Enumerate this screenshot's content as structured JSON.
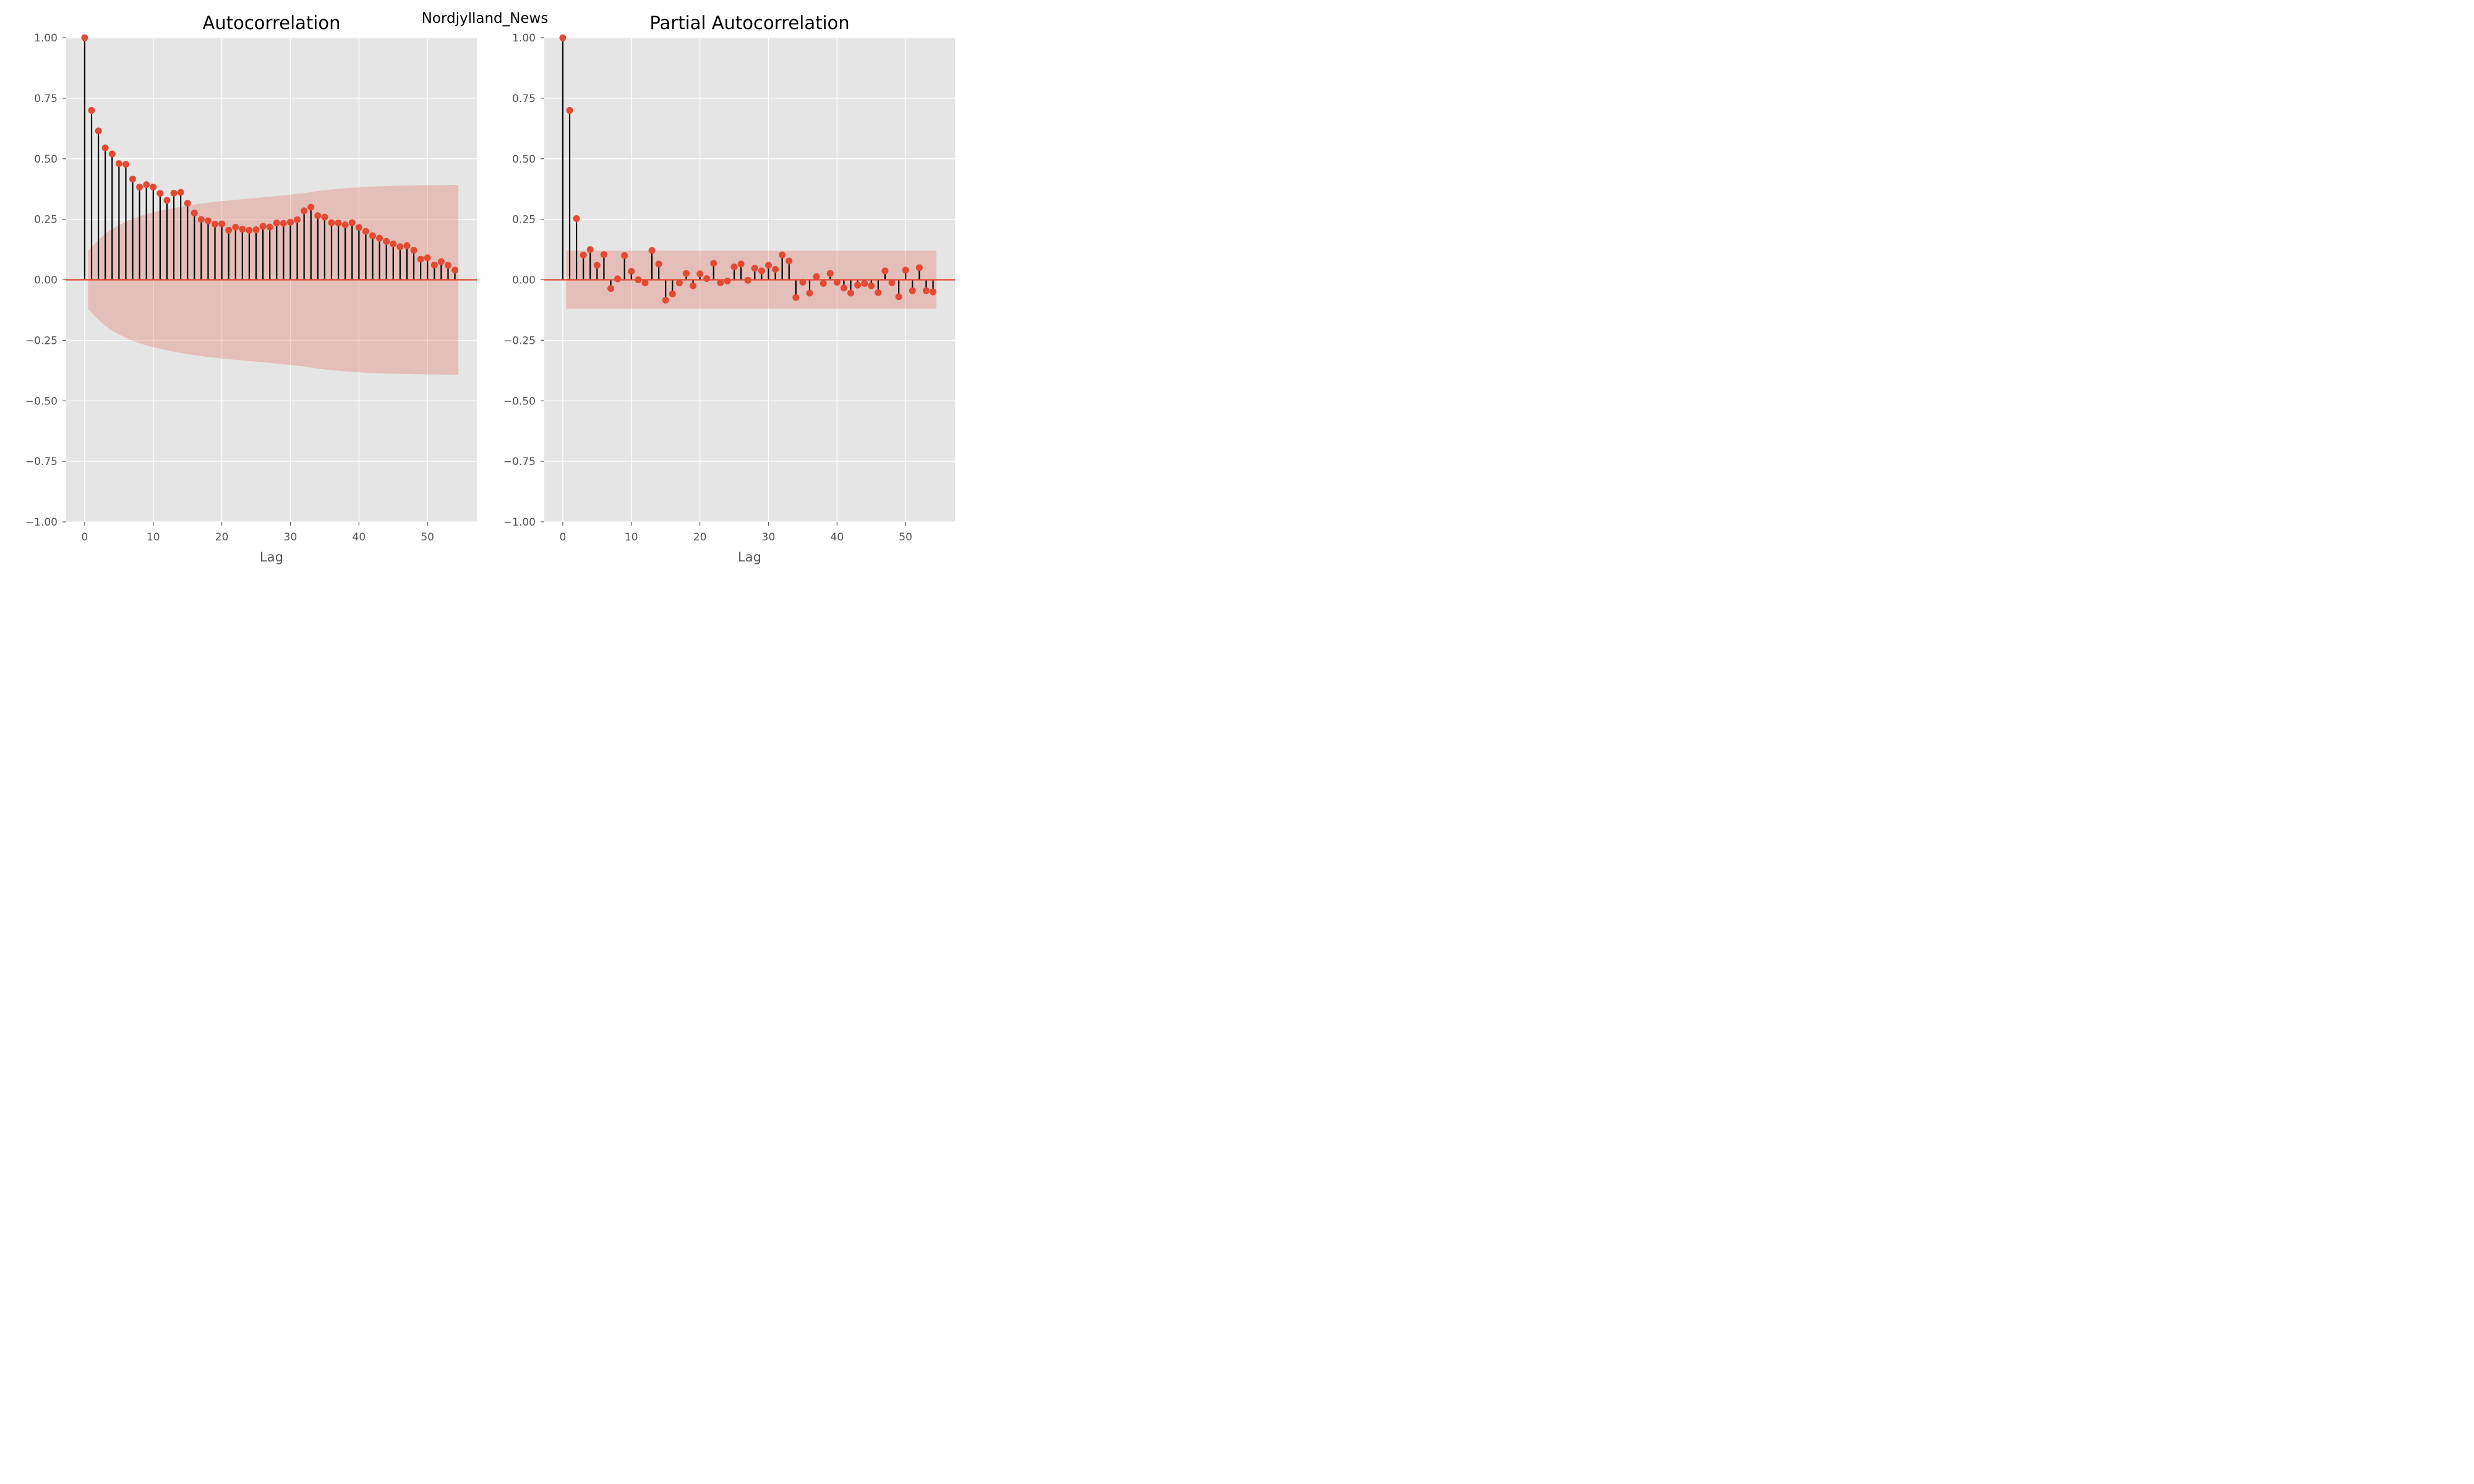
{
  "figure": {
    "suptitle": "Nordjylland_News"
  },
  "colors": {
    "panel_bg": "#e5e5e5",
    "grid": "#ffffff",
    "marker": "#e24a33",
    "stem": "#000000",
    "baseline": "#e24a33",
    "confidence_band": "#e24a33"
  },
  "chart_data": [
    {
      "type": "stem",
      "title": "Autocorrelation",
      "xlabel": "Lag",
      "ylabel": "",
      "xlim": [
        -2.7,
        57.2
      ],
      "ylim": [
        -1.0,
        1.0
      ],
      "grid": true,
      "xticks": [
        0,
        10,
        20,
        30,
        40,
        50
      ],
      "xtick_labels": [
        "0",
        "10",
        "20",
        "30",
        "40",
        "50"
      ],
      "yticks": [
        1.0,
        0.75,
        0.5,
        0.25,
        0.0,
        -0.25,
        -0.5,
        -0.75,
        -1.0
      ],
      "ytick_labels": [
        "1.00",
        "0.75",
        "0.50",
        "0.25",
        "0.00",
        "−0.25",
        "−0.50",
        "−0.75",
        "−1.00"
      ],
      "lags": [
        0,
        1,
        2,
        3,
        4,
        5,
        6,
        7,
        8,
        9,
        10,
        11,
        12,
        13,
        14,
        15,
        16,
        17,
        18,
        19,
        20,
        21,
        22,
        23,
        24,
        25,
        26,
        27,
        28,
        29,
        30,
        31,
        32,
        33,
        34,
        35,
        36,
        37,
        38,
        39,
        40,
        41,
        42,
        43,
        44,
        45,
        46,
        47,
        48,
        49,
        50,
        51,
        52,
        53,
        54
      ],
      "values": [
        1.0,
        0.7,
        0.615,
        0.545,
        0.52,
        0.48,
        0.477,
        0.416,
        0.383,
        0.393,
        0.383,
        0.357,
        0.328,
        0.358,
        0.361,
        0.316,
        0.276,
        0.249,
        0.244,
        0.23,
        0.231,
        0.205,
        0.217,
        0.209,
        0.205,
        0.207,
        0.221,
        0.218,
        0.235,
        0.233,
        0.238,
        0.248,
        0.285,
        0.3,
        0.265,
        0.259,
        0.236,
        0.235,
        0.227,
        0.236,
        0.216,
        0.2,
        0.182,
        0.172,
        0.159,
        0.148,
        0.137,
        0.141,
        0.122,
        0.085,
        0.091,
        0.061,
        0.075,
        0.06,
        0.04
      ],
      "confidence_band": {
        "lags": [
          0.5,
          1,
          2,
          3,
          4,
          5,
          6,
          7,
          8,
          9,
          10,
          11,
          12,
          13,
          14,
          15,
          16,
          17,
          18,
          19,
          20,
          21,
          22,
          23,
          24,
          25,
          26,
          27,
          28,
          29,
          30,
          31,
          32,
          33,
          34,
          35,
          36,
          37,
          38,
          39,
          40,
          41,
          42,
          43,
          44,
          45,
          46,
          47,
          48,
          49,
          50,
          51,
          52,
          53,
          54.5
        ],
        "upper": [
          0.12,
          0.135,
          0.165,
          0.19,
          0.21,
          0.225,
          0.24,
          0.252,
          0.262,
          0.271,
          0.278,
          0.285,
          0.291,
          0.297,
          0.302,
          0.307,
          0.311,
          0.315,
          0.319,
          0.322,
          0.325,
          0.328,
          0.33,
          0.333,
          0.336,
          0.338,
          0.341,
          0.343,
          0.346,
          0.349,
          0.352,
          0.355,
          0.358,
          0.363,
          0.367,
          0.37,
          0.373,
          0.376,
          0.378,
          0.38,
          0.382,
          0.384,
          0.385,
          0.386,
          0.387,
          0.388,
          0.389,
          0.389,
          0.39,
          0.39,
          0.391,
          0.391,
          0.391,
          0.392,
          0.392
        ]
      }
    },
    {
      "type": "stem",
      "title": "Partial Autocorrelation",
      "xlabel": "Lag",
      "ylabel": "",
      "xlim": [
        -2.7,
        57.2
      ],
      "ylim": [
        -1.0,
        1.0
      ],
      "grid": true,
      "xticks": [
        0,
        10,
        20,
        30,
        40,
        50
      ],
      "xtick_labels": [
        "0",
        "10",
        "20",
        "30",
        "40",
        "50"
      ],
      "yticks": [
        1.0,
        0.75,
        0.5,
        0.25,
        0.0,
        -0.25,
        -0.5,
        -0.75,
        -1.0
      ],
      "ytick_labels": [
        "1.00",
        "0.75",
        "0.50",
        "0.25",
        "0.00",
        "−0.25",
        "−0.50",
        "−0.75",
        "−1.00"
      ],
      "lags": [
        0,
        1,
        2,
        3,
        4,
        5,
        6,
        7,
        8,
        9,
        10,
        11,
        12,
        13,
        14,
        15,
        16,
        17,
        18,
        19,
        20,
        21,
        22,
        23,
        24,
        25,
        26,
        27,
        28,
        29,
        30,
        31,
        32,
        33,
        34,
        35,
        36,
        37,
        38,
        39,
        40,
        41,
        42,
        43,
        44,
        45,
        46,
        47,
        48,
        49,
        50,
        51,
        52,
        53,
        54
      ],
      "values": [
        1.0,
        0.7,
        0.253,
        0.102,
        0.125,
        0.06,
        0.104,
        -0.036,
        0.004,
        0.1,
        0.035,
        0.0,
        -0.013,
        0.121,
        0.065,
        -0.084,
        -0.058,
        -0.013,
        0.026,
        -0.025,
        0.025,
        0.005,
        0.068,
        -0.012,
        -0.005,
        0.053,
        0.065,
        -0.002,
        0.048,
        0.037,
        0.06,
        0.043,
        0.103,
        0.078,
        -0.073,
        -0.01,
        -0.055,
        0.013,
        -0.015,
        0.026,
        -0.01,
        -0.034,
        -0.055,
        -0.022,
        -0.015,
        -0.025,
        -0.053,
        0.037,
        -0.012,
        -0.07,
        0.04,
        -0.045,
        0.05,
        -0.045,
        -0.05
      ],
      "confidence_band": {
        "lags": [
          0.5,
          54.5
        ],
        "upper": [
          0.12,
          0.12
        ]
      }
    }
  ]
}
